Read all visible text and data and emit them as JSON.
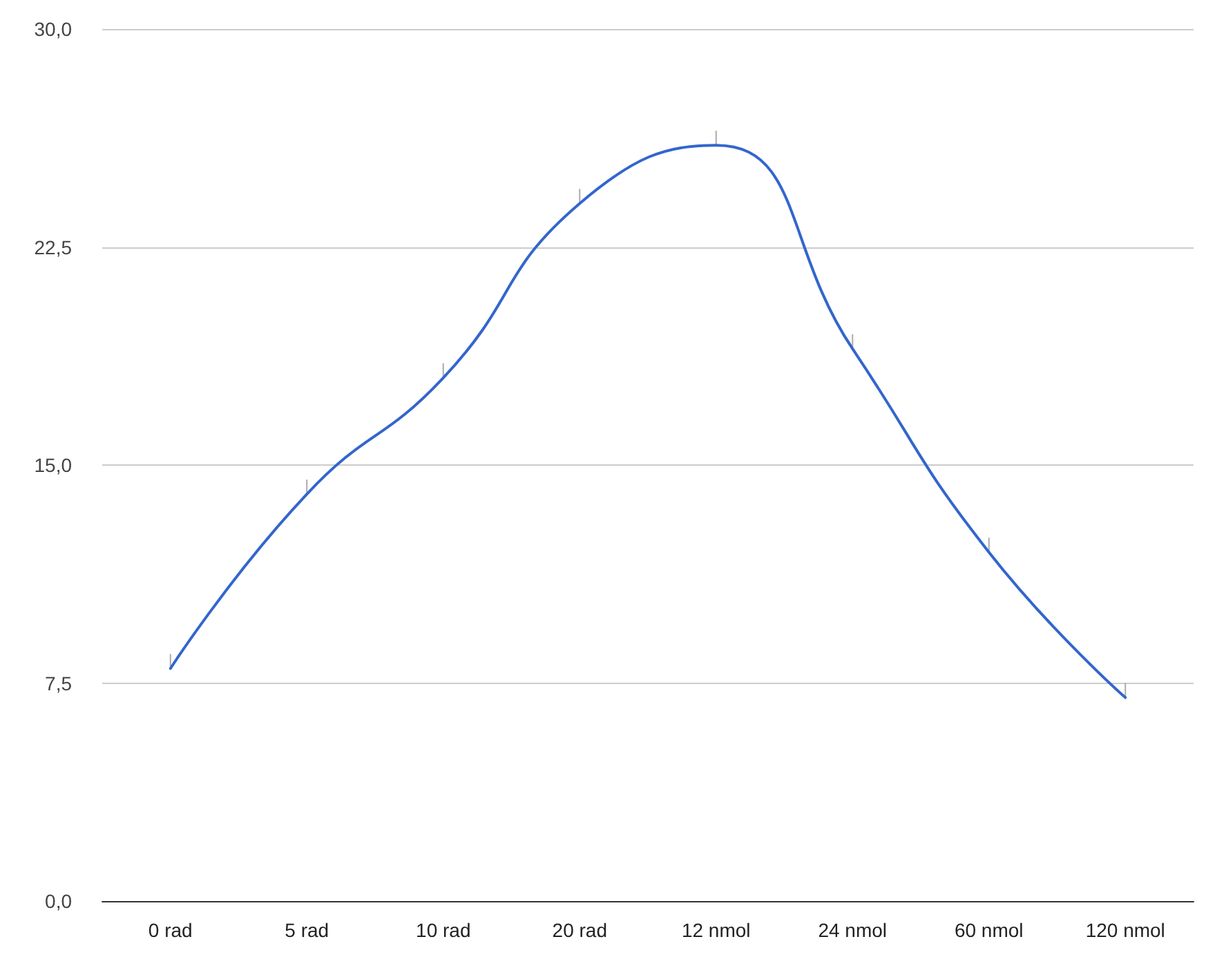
{
  "chart_data": {
    "type": "line",
    "categories": [
      "0 rad",
      "5 rad",
      "10 rad",
      "20 rad",
      "12 nmol",
      "24 nmol",
      "60 nmol",
      "120 nmol"
    ],
    "series": [
      {
        "color": "#3366cc",
        "values": [
          8,
          14,
          18,
          24,
          26,
          19,
          12,
          7
        ],
        "errors": [
          [
            8,
            8.5
          ],
          [
            14,
            14.5
          ],
          [
            18,
            18.5
          ],
          [
            24,
            24.5
          ],
          [
            26,
            26.5
          ],
          [
            19,
            19.5
          ],
          [
            12,
            12.5
          ],
          [
            7,
            7.5
          ]
        ]
      }
    ],
    "ylim": [
      0,
      30
    ],
    "yticks": [
      {
        "value": 0,
        "label": "0,0"
      },
      {
        "value": 7.5,
        "label": "7,5"
      },
      {
        "value": 15,
        "label": "15,0"
      },
      {
        "value": 22.5,
        "label": "22,5"
      },
      {
        "value": 30,
        "label": "30,0"
      }
    ],
    "grid": "y",
    "marker": "none",
    "line_style": "solid"
  }
}
